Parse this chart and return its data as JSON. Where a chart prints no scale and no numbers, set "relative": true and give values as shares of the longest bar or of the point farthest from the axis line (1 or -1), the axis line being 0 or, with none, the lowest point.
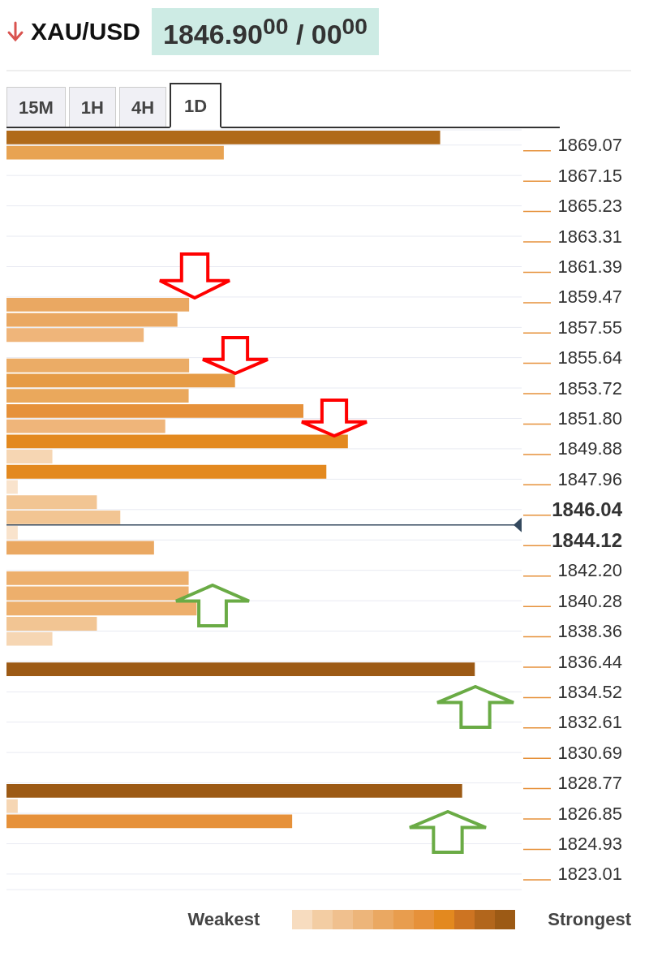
{
  "chart_data": {
    "type": "bar",
    "orientation": "horizontal",
    "relative": true,
    "title": "XAU/USD",
    "subtitle": "1846.90$^{00}$ / 00$^{00}$",
    "annotations": [
      "15M",
      "1H",
      "4H",
      "1D",
      "Weakest",
      "Strongest"
    ],
    "x": [
      1869.55,
      1868.59,
      1858.99,
      1858.03,
      1857.07,
      1855.15,
      1854.19,
      1853.23,
      1852.27,
      1851.31,
      1850.35,
      1849.39,
      1848.43,
      1847.47,
      1846.51,
      1845.55,
      1844.59,
      1843.63,
      1841.71,
      1840.75,
      1839.79,
      1838.83,
      1837.87,
      1835.95,
      1828.27,
      1827.31,
      1826.35
    ],
    "values": [
      0.926,
      0.464,
      0.39,
      0.365,
      0.293,
      0.39,
      0.488,
      0.389,
      0.634,
      0.339,
      0.729,
      0.098,
      0.683,
      0.024,
      0.193,
      0.243,
      0.024,
      0.315,
      0.389,
      0.389,
      0.406,
      0.193,
      0.098,
      1,
      0.973,
      0.024,
      0.61
    ],
    "colors": [
      "#b06a1a",
      "#e8a352",
      "#eaa862",
      "#eaa862",
      "#efb57a",
      "#ebac66",
      "#e69b45",
      "#eaa85c",
      "#e6913a",
      "#efb57a",
      "#e3891f",
      "#f6d6b3",
      "#e3891f",
      "#f9e3cc",
      "#f2c593",
      "#f2c593",
      "#f9e3cc",
      "#eaa862",
      "#edaf6c",
      "#edaf6c",
      "#edaf6c",
      "#f2c593",
      "#f6d6b3",
      "#9c5a15",
      "#9c5a15",
      "#f6d6b3",
      "#e6913a"
    ],
    "ylim": [
      1822.03,
      1870.03
    ],
    "yticks": [
      1869.07,
      1867.15,
      1865.23,
      1863.31,
      1861.39,
      1859.47,
      1857.55,
      1855.64,
      1853.72,
      {
        "value": 1851.8,
        "label": "1851.80"
      },
      1849.88,
      1847.96,
      1846.04,
      1844.12,
      {
        "value": 1842.2,
        "label": "1842.20"
      },
      1840.28,
      1838.36,
      1836.44,
      1834.52,
      1832.61,
      1830.69,
      1828.77,
      1826.85,
      1824.93,
      1823.01
    ],
    "ref_lines": [
      {
        "axis": "y",
        "value": 1845.07,
        "color": "#34495e"
      }
    ],
    "grid": "y"
  }
}
